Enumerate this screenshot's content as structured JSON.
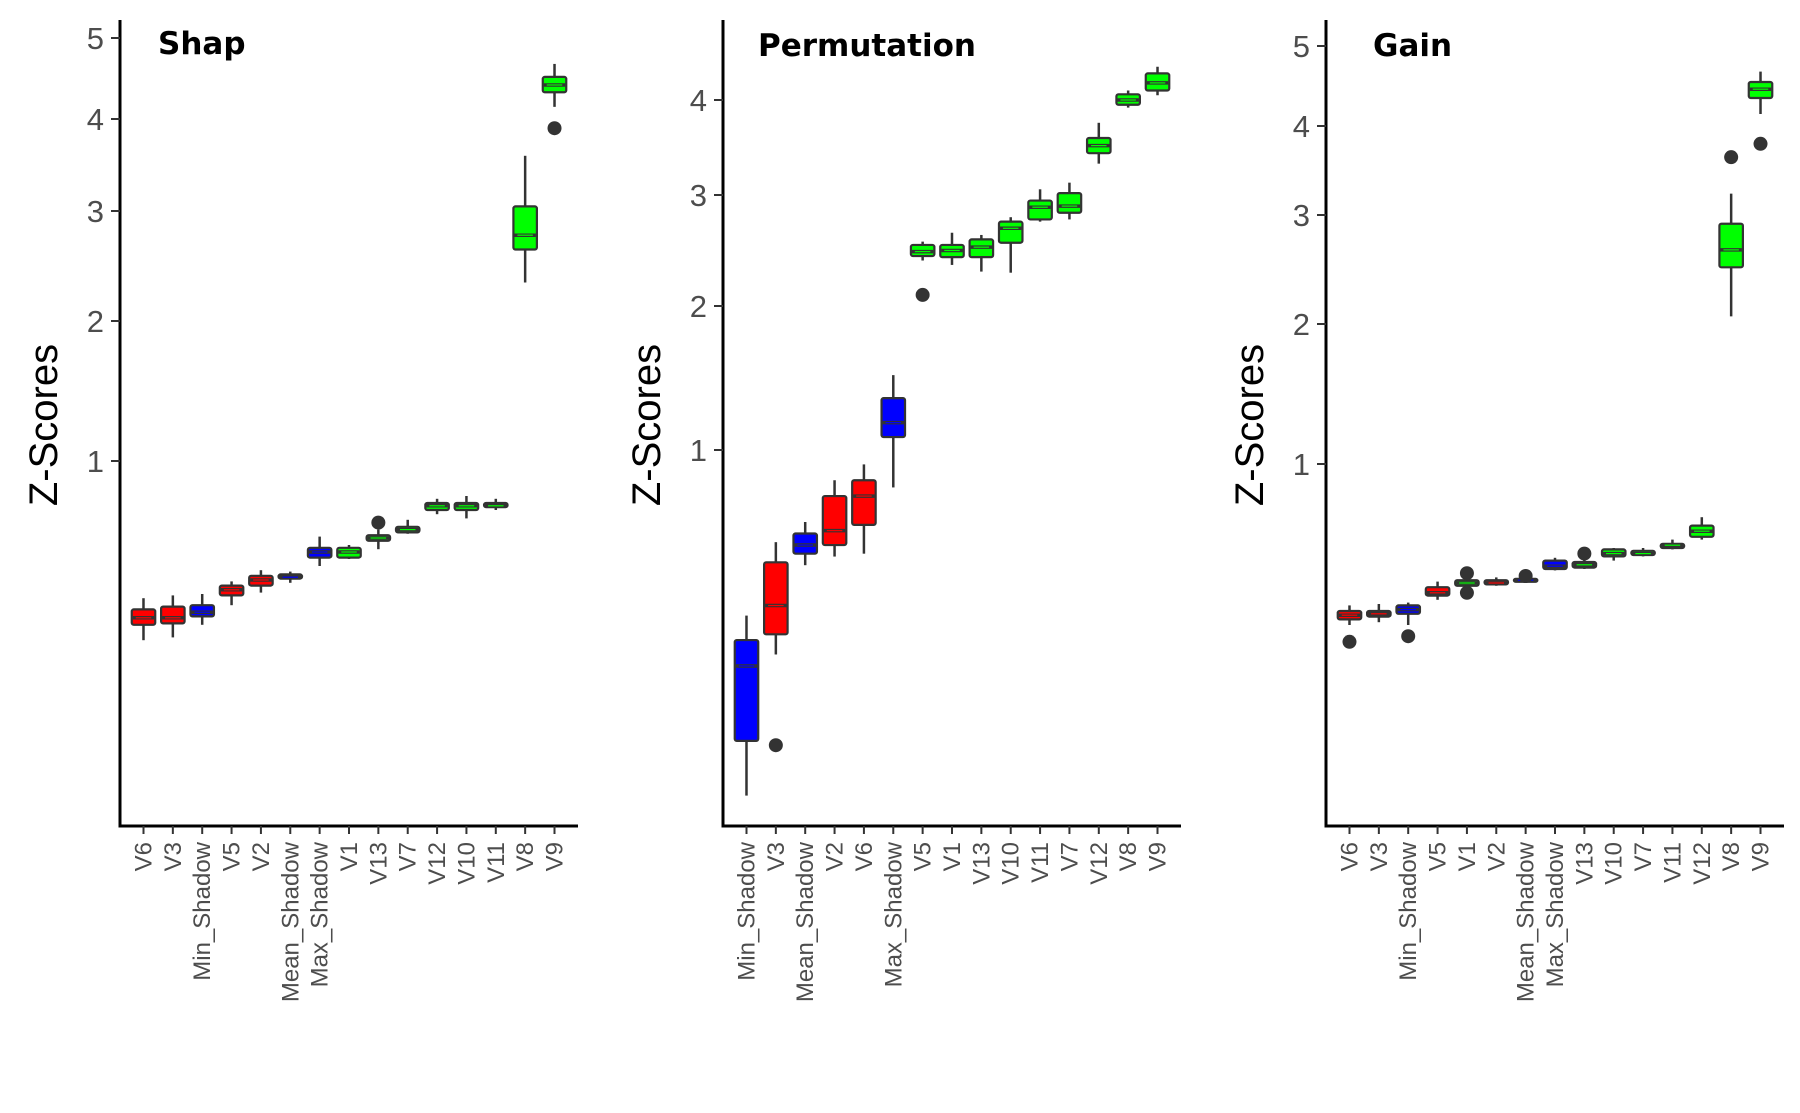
{
  "chart_data": [
    {
      "type": "box",
      "title": "Shap",
      "ylabel": "Z-Scores",
      "xlabel": "",
      "y_scale": "power (approx. sqrt-like)",
      "y_ticks": [
        "1",
        "2",
        "3",
        "4",
        "5"
      ],
      "colors": {
        "Rejected": "#ff0000",
        "Shadow": "#0000ff",
        "Confirmed": "#00ff00",
        "outline": "#333333"
      },
      "boxes": [
        {
          "category": "V6",
          "status": "Rejected",
          "whisker_low": -0.28,
          "q1": -0.17,
          "median": -0.12,
          "q3": -0.06,
          "whisker_high": 0.02,
          "outliers": []
        },
        {
          "category": "V3",
          "status": "Rejected",
          "whisker_low": -0.26,
          "q1": -0.16,
          "median": -0.12,
          "q3": -0.04,
          "whisker_high": 0.04,
          "outliers": []
        },
        {
          "category": "Min_Shadow",
          "status": "Shadow",
          "whisker_low": -0.17,
          "q1": -0.11,
          "median": -0.08,
          "q3": -0.03,
          "whisker_high": 0.05,
          "outliers": []
        },
        {
          "category": "V5",
          "status": "Rejected",
          "whisker_low": -0.03,
          "q1": 0.04,
          "median": 0.08,
          "q3": 0.11,
          "whisker_high": 0.14,
          "outliers": []
        },
        {
          "category": "V2",
          "status": "Rejected",
          "whisker_low": 0.06,
          "q1": 0.11,
          "median": 0.15,
          "q3": 0.18,
          "whisker_high": 0.22,
          "outliers": []
        },
        {
          "category": "Mean_Shadow",
          "status": "Shadow",
          "whisker_low": 0.13,
          "q1": 0.16,
          "median": 0.17,
          "q3": 0.19,
          "whisker_high": 0.21,
          "outliers": []
        },
        {
          "category": "Max_Shadow",
          "status": "Shadow",
          "whisker_low": 0.25,
          "q1": 0.31,
          "median": 0.35,
          "q3": 0.38,
          "whisker_high": 0.46,
          "outliers": []
        },
        {
          "category": "V1",
          "status": "Confirmed",
          "whisker_low": 0.3,
          "q1": 0.31,
          "median": 0.35,
          "q3": 0.38,
          "whisker_high": 0.4,
          "outliers": []
        },
        {
          "category": "V13",
          "status": "Confirmed",
          "whisker_low": 0.37,
          "q1": 0.43,
          "median": 0.45,
          "q3": 0.47,
          "whisker_high": 0.51,
          "outliers": [
            0.56
          ]
        },
        {
          "category": "V7",
          "status": "Confirmed",
          "whisker_low": 0.48,
          "q1": 0.49,
          "median": 0.51,
          "q3": 0.53,
          "whisker_high": 0.58,
          "outliers": []
        },
        {
          "category": "V12",
          "status": "Confirmed",
          "whisker_low": 0.62,
          "q1": 0.65,
          "median": 0.68,
          "q3": 0.7,
          "whisker_high": 0.73,
          "outliers": []
        },
        {
          "category": "V10",
          "status": "Confirmed",
          "whisker_low": 0.59,
          "q1": 0.65,
          "median": 0.68,
          "q3": 0.7,
          "whisker_high": 0.75,
          "outliers": []
        },
        {
          "category": "V11",
          "status": "Confirmed",
          "whisker_low": 0.65,
          "q1": 0.67,
          "median": 0.68,
          "q3": 0.7,
          "whisker_high": 0.73,
          "outliers": []
        },
        {
          "category": "V8",
          "status": "Confirmed",
          "whisker_low": 2.35,
          "q1": 2.65,
          "median": 2.78,
          "q3": 3.05,
          "whisker_high": 3.6,
          "outliers": []
        },
        {
          "category": "V9",
          "status": "Confirmed",
          "whisker_low": 4.15,
          "q1": 4.33,
          "median": 4.42,
          "q3": 4.52,
          "whisker_high": 4.68,
          "outliers": [
            3.9
          ]
        }
      ]
    },
    {
      "type": "box",
      "title": "Permutation",
      "ylabel": "Z-Scores",
      "xlabel": "",
      "y_scale": "power (approx. sqrt-like)",
      "y_ticks": [
        "1",
        "2",
        "3",
        "4"
      ],
      "colors": {
        "Rejected": "#ff0000",
        "Shadow": "#0000ff",
        "Confirmed": "#00ff00",
        "outline": "#333333"
      },
      "boxes": [
        {
          "category": "Min_Shadow",
          "status": "Shadow",
          "whisker_low": -1.4,
          "q1": -1.02,
          "median": -0.5,
          "q3": -0.32,
          "whisker_high": -0.15,
          "outliers": []
        },
        {
          "category": "V3",
          "status": "Rejected",
          "whisker_low": -0.42,
          "q1": -0.28,
          "median": -0.08,
          "q3": 0.22,
          "whisker_high": 0.36,
          "outliers": [
            -1.05
          ]
        },
        {
          "category": "Mean_Shadow",
          "status": "Shadow",
          "whisker_low": 0.2,
          "q1": 0.28,
          "median": 0.34,
          "q3": 0.42,
          "whisker_high": 0.5,
          "outliers": []
        },
        {
          "category": "V2",
          "status": "Rejected",
          "whisker_low": 0.26,
          "q1": 0.34,
          "median": 0.44,
          "q3": 0.68,
          "whisker_high": 0.79,
          "outliers": []
        },
        {
          "category": "V6",
          "status": "Rejected",
          "whisker_low": 0.28,
          "q1": 0.48,
          "median": 0.68,
          "q3": 0.79,
          "whisker_high": 0.9,
          "outliers": []
        },
        {
          "category": "Max_Shadow",
          "status": "Shadow",
          "whisker_low": 0.74,
          "q1": 1.09,
          "median": 1.19,
          "q3": 1.36,
          "whisker_high": 1.52,
          "outliers": []
        },
        {
          "category": "V5",
          "status": "Confirmed",
          "whisker_low": 2.41,
          "q1": 2.45,
          "median": 2.49,
          "q3": 2.55,
          "whisker_high": 2.58,
          "outliers": [
            2.1
          ]
        },
        {
          "category": "V1",
          "status": "Confirmed",
          "whisker_low": 2.37,
          "q1": 2.44,
          "median": 2.5,
          "q3": 2.55,
          "whisker_high": 2.66,
          "outliers": []
        },
        {
          "category": "V13",
          "status": "Confirmed",
          "whisker_low": 2.31,
          "q1": 2.44,
          "median": 2.53,
          "q3": 2.6,
          "whisker_high": 2.64,
          "outliers": []
        },
        {
          "category": "V10",
          "status": "Confirmed",
          "whisker_low": 2.3,
          "q1": 2.57,
          "median": 2.7,
          "q3": 2.76,
          "whisker_high": 2.8,
          "outliers": []
        },
        {
          "category": "V11",
          "status": "Confirmed",
          "whisker_low": 2.76,
          "q1": 2.78,
          "median": 2.89,
          "q3": 2.95,
          "whisker_high": 3.06,
          "outliers": []
        },
        {
          "category": "V7",
          "status": "Confirmed",
          "whisker_low": 2.78,
          "q1": 2.84,
          "median": 2.9,
          "q3": 3.02,
          "whisker_high": 3.13,
          "outliers": []
        },
        {
          "category": "V12",
          "status": "Confirmed",
          "whisker_low": 3.33,
          "q1": 3.44,
          "median": 3.52,
          "q3": 3.6,
          "whisker_high": 3.76,
          "outliers": []
        },
        {
          "category": "V8",
          "status": "Confirmed",
          "whisker_low": 3.92,
          "q1": 3.95,
          "median": 4.0,
          "q3": 4.06,
          "whisker_high": 4.1,
          "outliers": []
        },
        {
          "category": "V9",
          "status": "Confirmed",
          "whisker_low": 4.05,
          "q1": 4.1,
          "median": 4.18,
          "q3": 4.28,
          "whisker_high": 4.35,
          "outliers": []
        }
      ]
    },
    {
      "type": "box",
      "title": "Gain",
      "ylabel": "Z-Scores",
      "xlabel": "",
      "y_scale": "power (approx. sqrt-like)",
      "y_ticks": [
        "1",
        "2",
        "3",
        "4",
        "5"
      ],
      "colors": {
        "Rejected": "#ff0000",
        "Shadow": "#0000ff",
        "Confirmed": "#00ff00",
        "outline": "#333333"
      },
      "boxes": [
        {
          "category": "V6",
          "status": "Rejected",
          "whisker_low": -0.15,
          "q1": -0.11,
          "median": -0.08,
          "q3": -0.05,
          "whisker_high": -0.01,
          "outliers": [
            -0.27
          ]
        },
        {
          "category": "V3",
          "status": "Rejected",
          "whisker_low": -0.13,
          "q1": -0.09,
          "median": -0.07,
          "q3": -0.05,
          "whisker_high": 0.0,
          "outliers": []
        },
        {
          "category": "Min_Shadow",
          "status": "Shadow",
          "whisker_low": -0.15,
          "q1": -0.07,
          "median": -0.04,
          "q3": -0.01,
          "whisker_high": 0.01,
          "outliers": [
            -0.23
          ]
        },
        {
          "category": "V5",
          "status": "Rejected",
          "whisker_low": 0.03,
          "q1": 0.06,
          "median": 0.08,
          "q3": 0.12,
          "whisker_high": 0.16,
          "outliers": []
        },
        {
          "category": "V1",
          "status": "Confirmed",
          "whisker_low": 0.12,
          "q1": 0.13,
          "median": 0.15,
          "q3": 0.17,
          "whisker_high": 0.18,
          "outliers": [
            0.08,
            0.22
          ]
        },
        {
          "category": "V2",
          "status": "Rejected",
          "whisker_low": 0.13,
          "q1": 0.14,
          "median": 0.15,
          "q3": 0.17,
          "whisker_high": 0.19,
          "outliers": []
        },
        {
          "category": "Mean_Shadow",
          "status": "Shadow",
          "whisker_low": 0.15,
          "q1": 0.16,
          "median": 0.17,
          "q3": 0.18,
          "whisker_high": 0.19,
          "outliers": [
            0.2
          ]
        },
        {
          "category": "Max_Shadow",
          "status": "Shadow",
          "whisker_low": 0.24,
          "q1": 0.25,
          "median": 0.27,
          "q3": 0.31,
          "whisker_high": 0.33,
          "outliers": []
        },
        {
          "category": "V13",
          "status": "Confirmed",
          "whisker_low": 0.25,
          "q1": 0.26,
          "median": 0.28,
          "q3": 0.3,
          "whisker_high": 0.32,
          "outliers": [
            0.36
          ]
        },
        {
          "category": "V10",
          "status": "Confirmed",
          "whisker_low": 0.31,
          "q1": 0.34,
          "median": 0.36,
          "q3": 0.39,
          "whisker_high": 0.4,
          "outliers": []
        },
        {
          "category": "V7",
          "status": "Confirmed",
          "whisker_low": 0.34,
          "q1": 0.35,
          "median": 0.36,
          "q3": 0.38,
          "whisker_high": 0.4,
          "outliers": []
        },
        {
          "category": "V11",
          "status": "Confirmed",
          "whisker_low": 0.39,
          "q1": 0.4,
          "median": 0.42,
          "q3": 0.43,
          "whisker_high": 0.46,
          "outliers": []
        },
        {
          "category": "V12",
          "status": "Confirmed",
          "whisker_low": 0.46,
          "q1": 0.48,
          "median": 0.52,
          "q3": 0.56,
          "whisker_high": 0.62,
          "outliers": []
        },
        {
          "category": "V8",
          "status": "Confirmed",
          "whisker_low": 2.07,
          "q1": 2.52,
          "median": 2.68,
          "q3": 2.92,
          "whisker_high": 3.24,
          "outliers": [
            3.65
          ]
        },
        {
          "category": "V9",
          "status": "Confirmed",
          "whisker_low": 4.15,
          "q1": 4.35,
          "median": 4.46,
          "q3": 4.55,
          "whisker_high": 4.68,
          "outliers": [
            3.8
          ]
        }
      ]
    }
  ]
}
